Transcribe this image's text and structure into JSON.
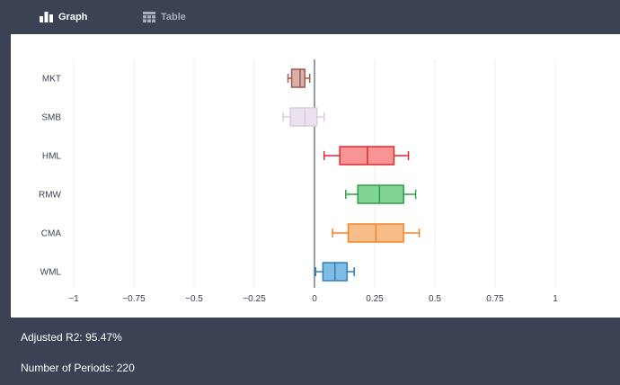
{
  "tabs": [
    {
      "label": "Graph",
      "icon": "bar-chart-icon",
      "active": true
    },
    {
      "label": "Table",
      "icon": "table-icon",
      "active": false
    }
  ],
  "chart_data": {
    "type": "box",
    "orientation": "horizontal",
    "xlim": [
      -1.1,
      1.1
    ],
    "xticks": [
      -1,
      -0.75,
      -0.5,
      -0.25,
      0,
      0.25,
      0.5,
      0.75,
      1
    ],
    "xtick_labels": [
      "−1",
      "−0.75",
      "−0.5",
      "−0.25",
      "0",
      "0.25",
      "0.5",
      "0.75",
      "1"
    ],
    "grid": true,
    "series": [
      {
        "name": "MKT",
        "color": "#9b5b50",
        "fill": "#d9b1a8",
        "min": -0.11,
        "q1": -0.095,
        "median": -0.06,
        "q3": -0.04,
        "max": -0.02
      },
      {
        "name": "SMB",
        "color": "#dccbe0",
        "fill": "#ebe1ef",
        "min": -0.13,
        "q1": -0.1,
        "median": -0.04,
        "q3": 0.01,
        "max": 0.04
      },
      {
        "name": "HML",
        "color": "#dd2a2a",
        "fill": "#f89494",
        "min": 0.04,
        "q1": 0.105,
        "median": 0.22,
        "q3": 0.33,
        "max": 0.39
      },
      {
        "name": "RMW",
        "color": "#27a243",
        "fill": "#82d494",
        "min": 0.13,
        "q1": 0.18,
        "median": 0.27,
        "q3": 0.37,
        "max": 0.42
      },
      {
        "name": "CMA",
        "color": "#f0862b",
        "fill": "#f9bd89",
        "min": 0.075,
        "q1": 0.14,
        "median": 0.255,
        "q3": 0.37,
        "max": 0.435
      },
      {
        "name": "WML",
        "color": "#2a80bf",
        "fill": "#7fbbe2",
        "min": 0.005,
        "q1": 0.035,
        "median": 0.085,
        "q3": 0.135,
        "max": 0.165
      }
    ]
  },
  "stats": {
    "adjusted_r2_label": "Adjusted R2:",
    "adjusted_r2_value": "95.47%",
    "periods_label": "Number of Periods:",
    "periods_value": "220"
  }
}
